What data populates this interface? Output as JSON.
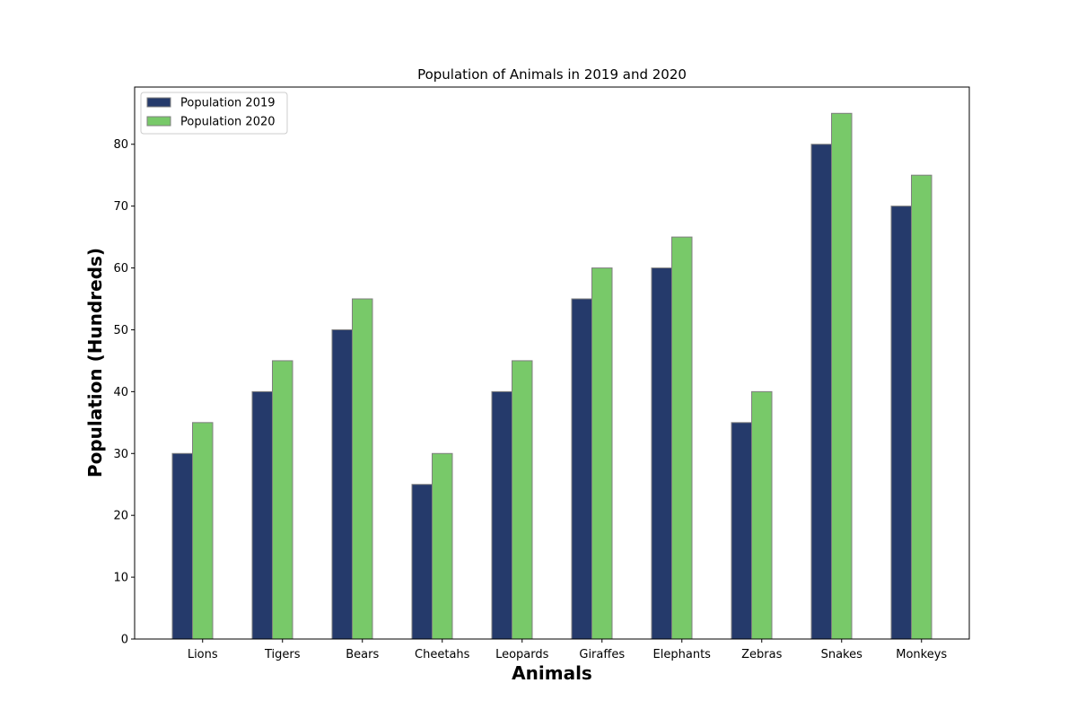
{
  "chart_data": {
    "type": "bar",
    "title": "Population of Animals in 2019 and 2020",
    "xlabel": "Animals",
    "ylabel": "Population (Hundreds)",
    "categories": [
      "Lions",
      "Tigers",
      "Bears",
      "Cheetahs",
      "Leopards",
      "Giraffes",
      "Elephants",
      "Zebras",
      "Snakes",
      "Monkeys"
    ],
    "series": [
      {
        "name": "Population 2019",
        "color": "#253a6b",
        "values": [
          30,
          40,
          50,
          25,
          40,
          55,
          60,
          35,
          80,
          70
        ]
      },
      {
        "name": "Population 2020",
        "color": "#78c969",
        "values": [
          35,
          45,
          55,
          30,
          45,
          60,
          65,
          40,
          85,
          75
        ]
      }
    ],
    "ylim": [
      0,
      89.25
    ],
    "yticks": [
      0,
      10,
      20,
      30,
      40,
      50,
      60,
      70,
      80
    ],
    "legend": "top-left",
    "grid": false
  }
}
